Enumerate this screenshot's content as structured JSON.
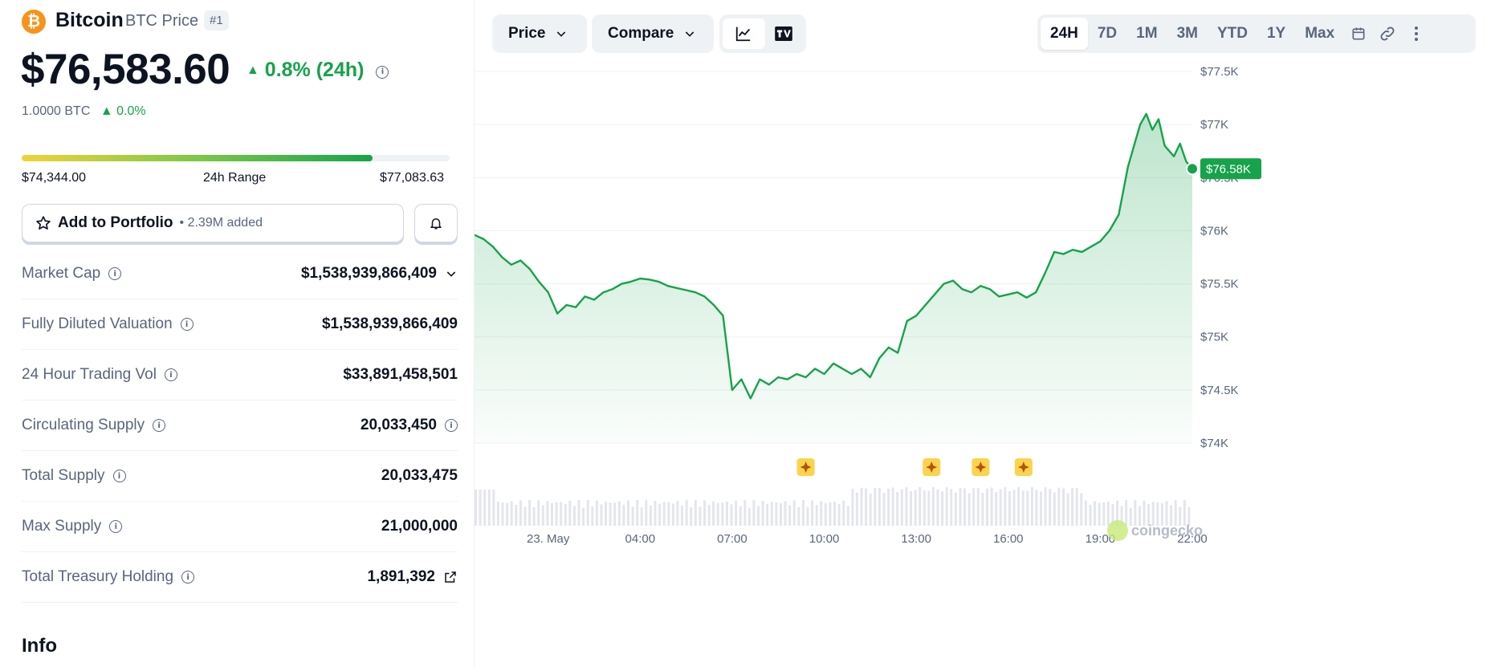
{
  "coin": {
    "name": "Bitcoin",
    "subtitle": "BTC Price",
    "rank": "#1",
    "logo_symbol": "₿",
    "price": "$76,583.60",
    "change": "0.8% (24h)",
    "btc_amount": "1.0000 BTC",
    "btc_change": "0.0%"
  },
  "range": {
    "low": "$74,344.00",
    "label": "24h Range",
    "high": "$77,083.63",
    "position": 0.82
  },
  "portfolio": {
    "label": "Add to Portfolio",
    "added": "• 2.39M added"
  },
  "stats": [
    {
      "label": "Market Cap",
      "value": "$1,538,939,866,409"
    },
    {
      "label": "Fully Diluted Valuation",
      "value": "$1,538,939,866,409"
    },
    {
      "label": "24 Hour Trading Vol",
      "value": "$33,891,458,501"
    },
    {
      "label": "Circulating Supply",
      "value": "20,033,450"
    },
    {
      "label": "Total Supply",
      "value": "20,033,475"
    },
    {
      "label": "Max Supply",
      "value": "21,000,000"
    },
    {
      "label": "Total Treasury Holding",
      "value": "1,891,392"
    }
  ],
  "info_heading": "Info",
  "toolbar": {
    "price_label": "Price",
    "compare_label": "Compare",
    "timeframes": [
      "24H",
      "7D",
      "1M",
      "3M",
      "YTD",
      "1Y",
      "Max"
    ],
    "active_timeframe": "24H"
  },
  "chart_data": {
    "type": "area",
    "current_label": "$76.58K",
    "y_ticks": [
      "$77.5K",
      "$77K",
      "$76.5K",
      "$76K",
      "$75.5K",
      "$75K",
      "$74.5K",
      "$74K"
    ],
    "ylim": [
      74000,
      77500
    ],
    "x_ticks": [
      "23. May",
      "04:00",
      "07:00",
      "10:00",
      "13:00",
      "16:00",
      "19:00",
      "22:00"
    ],
    "watermark": "coingecko",
    "color": "#16a34a",
    "series": [
      {
        "x_hours": [
          0,
          0.3,
          0.6,
          0.9,
          1.2,
          1.5,
          1.8,
          2.1,
          2.4,
          2.7,
          3.0,
          3.3,
          3.6,
          3.9,
          4.2,
          4.5,
          4.8,
          5.1,
          5.4,
          5.7,
          6.0,
          6.3,
          6.6,
          6.9,
          7.2,
          7.5,
          7.8,
          8.1,
          8.4,
          8.7,
          9.0,
          9.3,
          9.6,
          9.9,
          10.2,
          10.5,
          10.8,
          11.1,
          11.4,
          11.7,
          12.0,
          12.3,
          12.6,
          12.9,
          13.2,
          13.5,
          13.8,
          14.1,
          14.4,
          14.7,
          15.0,
          15.3,
          15.6,
          15.9,
          16.2,
          16.5,
          16.8,
          17.1,
          17.4,
          17.7,
          18.0,
          18.3,
          18.6,
          18.9,
          19.2,
          19.5,
          19.8,
          20.1,
          20.4,
          20.7,
          21.0,
          21.3,
          21.5,
          21.7,
          21.9,
          22.1,
          22.3,
          22.5,
          22.8,
          23.0,
          23.2,
          23.4
        ],
        "values": [
          75960,
          75920,
          75850,
          75750,
          75680,
          75720,
          75640,
          75520,
          75420,
          75220,
          75300,
          75280,
          75380,
          75350,
          75420,
          75450,
          75500,
          75520,
          75550,
          75540,
          75520,
          75480,
          75460,
          75440,
          75420,
          75380,
          75300,
          75200,
          74500,
          74600,
          74420,
          74600,
          74550,
          74620,
          74600,
          74650,
          74620,
          74700,
          74650,
          74750,
          74700,
          74650,
          74700,
          74620,
          74800,
          74900,
          74850,
          75150,
          75200,
          75300,
          75400,
          75500,
          75530,
          75450,
          75420,
          75480,
          75450,
          75380,
          75400,
          75420,
          75370,
          75420,
          75600,
          75800,
          75780,
          75820,
          75800,
          75850,
          75900,
          76000,
          76150,
          76600,
          76800,
          77000,
          77100,
          76950,
          77050,
          76800,
          76700,
          76820,
          76650,
          76583
        ]
      }
    ],
    "event_markers_hours": [
      10.8,
      14.9,
      16.5,
      17.9
    ]
  }
}
